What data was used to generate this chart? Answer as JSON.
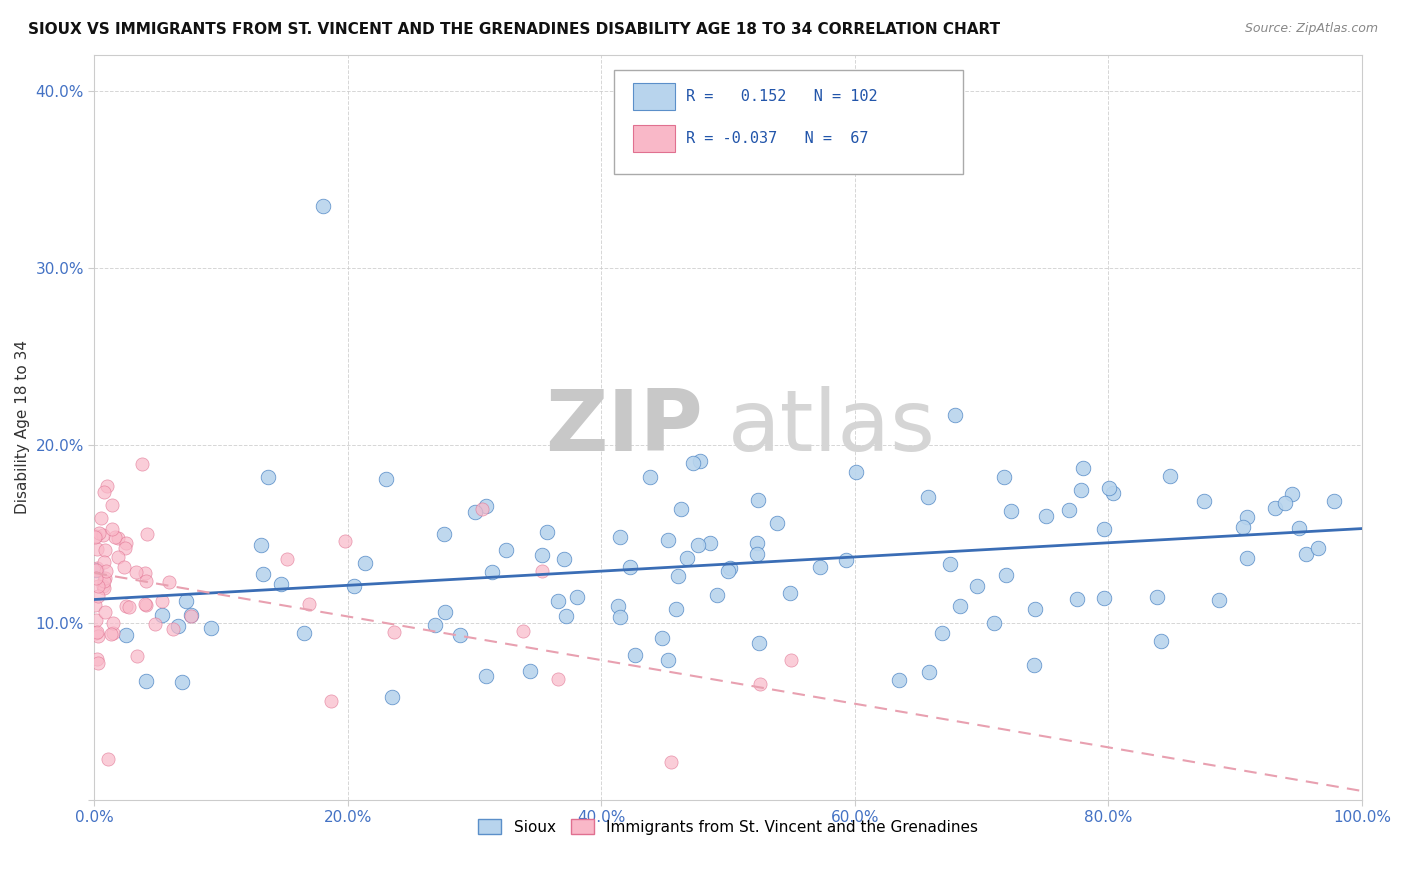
{
  "title": "SIOUX VS IMMIGRANTS FROM ST. VINCENT AND THE GRENADINES DISABILITY AGE 18 TO 34 CORRELATION CHART",
  "source": "Source: ZipAtlas.com",
  "ylabel": "Disability Age 18 to 34",
  "xlim": [
    0.0,
    1.0
  ],
  "ylim": [
    0.0,
    0.42
  ],
  "xtick_vals": [
    0.0,
    0.2,
    0.4,
    0.6,
    0.8,
    1.0
  ],
  "ytick_vals": [
    0.0,
    0.1,
    0.2,
    0.3,
    0.4
  ],
  "xtick_labels": [
    "0.0%",
    "20.0%",
    "40.0%",
    "60.0%",
    "80.0%",
    "100.0%"
  ],
  "ytick_labels": [
    "",
    "10.0%",
    "20.0%",
    "30.0%",
    "40.0%"
  ],
  "background_color": "#ffffff",
  "R_sioux": 0.152,
  "N_sioux": 102,
  "R_immig": -0.037,
  "N_immig": 67,
  "sioux_fill": "#b8d4ed",
  "sioux_edge": "#5b8fc9",
  "immig_fill": "#f9b8c8",
  "immig_edge": "#e07090",
  "sioux_line_color": "#3a6db5",
  "immig_line_color": "#e8a0b0",
  "grid_color": "#cccccc",
  "tick_color": "#4472c4",
  "title_color": "#111111",
  "ylabel_color": "#333333",
  "source_color": "#888888",
  "watermark_zip_color": "#cccccc",
  "watermark_atlas_color": "#bbbbbb"
}
